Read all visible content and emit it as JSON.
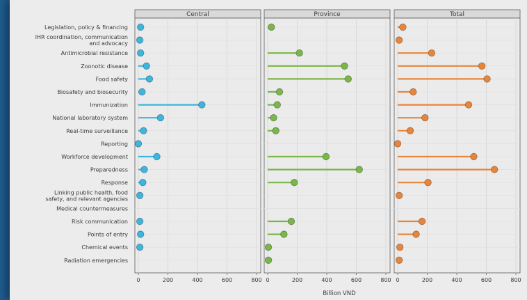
{
  "chart_data": {
    "type": "lollipop",
    "xlabel": "Billion VND",
    "xlim": [
      0,
      800
    ],
    "xticks": [
      0,
      200,
      400,
      600,
      800
    ],
    "categories": [
      "Legislation, policy & financing",
      "IHR coordination, communication\nand advocacy",
      "Antimicrobial resistance",
      "Zoonotic disease",
      "Food safety",
      "Biosafety and biosecurity",
      "Immunization",
      "National laboratory system",
      "Real-time surveillance",
      "Reporting",
      "Workforce development",
      "Preparedness",
      "Response",
      "Linking public health, food\nsafety, and relevant agencies",
      "Medical countermeasures",
      "Risk communication",
      "Points of entry",
      "Chemical events",
      "Radiation emergencies"
    ],
    "panels": [
      {
        "name": "Central",
        "color": "#3db5de",
        "values": [
          15,
          10,
          15,
          55,
          75,
          25,
          430,
          150,
          35,
          0,
          125,
          40,
          30,
          10,
          null,
          10,
          15,
          10,
          null
        ]
      },
      {
        "name": "Province",
        "color": "#7ab648",
        "values": [
          25,
          null,
          215,
          520,
          545,
          80,
          65,
          40,
          55,
          null,
          395,
          620,
          180,
          null,
          null,
          160,
          110,
          5,
          5
        ]
      },
      {
        "name": "Total",
        "color": "#e8853a",
        "values": [
          35,
          10,
          230,
          570,
          605,
          105,
          480,
          185,
          85,
          0,
          515,
          655,
          205,
          10,
          null,
          165,
          125,
          15,
          10
        ]
      }
    ]
  }
}
